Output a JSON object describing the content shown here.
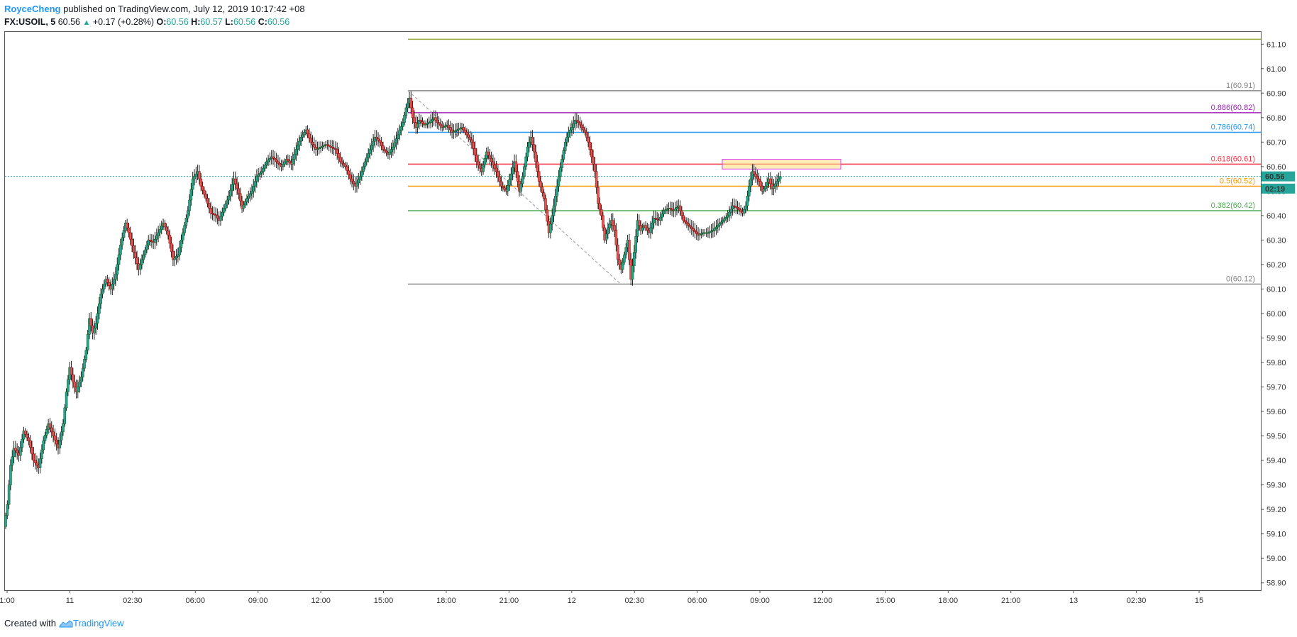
{
  "header": {
    "author": "RoyceCheng",
    "published": " published on TradingView.com, July 12, 2019 10:17:42 +08",
    "symbol": "FX:USOIL, 5",
    "last": "60.56",
    "arrow": "▲",
    "change": "+0.17 (+0.28%)",
    "o_label": "O:",
    "o_value": "60.56",
    "h_label": "H:",
    "h_value": "60.57",
    "l_label": "L:",
    "l_value": "60.56",
    "c_label": "C:",
    "c_value": "60.56"
  },
  "footer": {
    "created": "Created with",
    "brand": "TradingView"
  },
  "colors": {
    "up": "#26a69a",
    "down": "#ef5350",
    "brand": "#2196f3"
  },
  "chart_data": {
    "type": "candlestick",
    "symbol": "FX:USOIL",
    "interval": "5",
    "ylim": [
      58.87,
      61.15
    ],
    "y_ticks": [
      "61.10",
      "61.00",
      "60.90",
      "60.80",
      "60.70",
      "60.60",
      "60.50",
      "60.40",
      "60.30",
      "60.20",
      "60.10",
      "60.00",
      "59.90",
      "59.80",
      "59.70",
      "59.60",
      "59.50",
      "59.40",
      "59.30",
      "59.20",
      "59.10",
      "59.00",
      "58.90"
    ],
    "x_ticks": [
      "1:00",
      "11",
      "02:30",
      "06:00",
      "09:00",
      "12:00",
      "15:00",
      "18:00",
      "21:00",
      "12",
      "02:30",
      "06:00",
      "09:00",
      "12:00",
      "15:00",
      "18:00",
      "21:00",
      "13",
      "02:30",
      "15"
    ],
    "price_series": {
      "name": "",
      "points": [
        [
          0,
          59.13
        ],
        [
          4,
          59.22
        ],
        [
          8,
          59.38
        ],
        [
          12,
          59.45
        ],
        [
          18,
          59.42
        ],
        [
          24,
          59.52
        ],
        [
          30,
          59.48
        ],
        [
          36,
          59.4
        ],
        [
          42,
          59.37
        ],
        [
          48,
          59.48
        ],
        [
          54,
          59.55
        ],
        [
          60,
          59.5
        ],
        [
          66,
          59.45
        ],
        [
          72,
          59.55
        ],
        [
          76,
          59.68
        ],
        [
          80,
          59.78
        ],
        [
          84,
          59.72
        ],
        [
          88,
          59.68
        ],
        [
          94,
          59.74
        ],
        [
          100,
          59.85
        ],
        [
          104,
          59.98
        ],
        [
          108,
          59.92
        ],
        [
          112,
          59.96
        ],
        [
          118,
          60.08
        ],
        [
          124,
          60.14
        ],
        [
          130,
          60.1
        ],
        [
          136,
          60.16
        ],
        [
          142,
          60.28
        ],
        [
          148,
          60.37
        ],
        [
          152,
          60.33
        ],
        [
          158,
          60.25
        ],
        [
          164,
          60.18
        ],
        [
          170,
          60.24
        ],
        [
          176,
          60.3
        ],
        [
          182,
          60.29
        ],
        [
          188,
          60.33
        ],
        [
          194,
          60.37
        ],
        [
          200,
          60.32
        ],
        [
          206,
          60.22
        ],
        [
          212,
          60.24
        ],
        [
          218,
          60.33
        ],
        [
          224,
          60.42
        ],
        [
          230,
          60.55
        ],
        [
          236,
          60.58
        ],
        [
          240,
          60.52
        ],
        [
          246,
          60.47
        ],
        [
          252,
          60.41
        ],
        [
          258,
          60.4
        ],
        [
          262,
          60.38
        ],
        [
          268,
          60.43
        ],
        [
          274,
          60.48
        ],
        [
          280,
          60.55
        ],
        [
          286,
          60.49
        ],
        [
          290,
          60.43
        ],
        [
          296,
          60.47
        ],
        [
          302,
          60.5
        ],
        [
          308,
          60.56
        ],
        [
          314,
          60.58
        ],
        [
          320,
          60.62
        ],
        [
          326,
          60.64
        ],
        [
          332,
          60.62
        ],
        [
          338,
          60.6
        ],
        [
          344,
          60.63
        ],
        [
          350,
          60.61
        ],
        [
          356,
          60.67
        ],
        [
          362,
          60.72
        ],
        [
          368,
          60.75
        ],
        [
          374,
          60.7
        ],
        [
          380,
          60.67
        ],
        [
          386,
          60.68
        ],
        [
          392,
          60.69
        ],
        [
          398,
          60.68
        ],
        [
          404,
          60.67
        ],
        [
          410,
          60.62
        ],
        [
          416,
          60.6
        ],
        [
          422,
          60.55
        ],
        [
          428,
          60.52
        ],
        [
          434,
          60.56
        ],
        [
          440,
          60.62
        ],
        [
          446,
          60.67
        ],
        [
          452,
          60.72
        ],
        [
          458,
          60.7
        ],
        [
          462,
          60.67
        ],
        [
          468,
          60.65
        ],
        [
          474,
          60.68
        ],
        [
          480,
          60.73
        ],
        [
          486,
          60.78
        ],
        [
          490,
          60.84
        ],
        [
          494,
          60.88
        ],
        [
          498,
          60.8
        ],
        [
          502,
          60.76
        ],
        [
          506,
          60.79
        ],
        [
          512,
          60.77
        ],
        [
          518,
          60.78
        ],
        [
          524,
          60.8
        ],
        [
          528,
          60.78
        ],
        [
          534,
          60.76
        ],
        [
          540,
          60.77
        ],
        [
          546,
          60.74
        ],
        [
          552,
          60.75
        ],
        [
          558,
          60.76
        ],
        [
          564,
          60.73
        ],
        [
          570,
          60.7
        ],
        [
          576,
          60.62
        ],
        [
          582,
          60.58
        ],
        [
          588,
          60.66
        ],
        [
          594,
          60.62
        ],
        [
          600,
          60.58
        ],
        [
          606,
          60.52
        ],
        [
          612,
          60.5
        ],
        [
          618,
          60.57
        ],
        [
          622,
          60.62
        ],
        [
          628,
          60.5
        ],
        [
          632,
          60.56
        ],
        [
          638,
          60.68
        ],
        [
          642,
          60.72
        ],
        [
          646,
          60.66
        ],
        [
          652,
          60.54
        ],
        [
          658,
          60.47
        ],
        [
          664,
          60.33
        ],
        [
          668,
          60.4
        ],
        [
          672,
          60.48
        ],
        [
          676,
          60.56
        ],
        [
          680,
          60.63
        ],
        [
          684,
          60.7
        ],
        [
          688,
          60.74
        ],
        [
          692,
          60.76
        ],
        [
          696,
          60.79
        ],
        [
          700,
          60.78
        ],
        [
          704,
          60.76
        ],
        [
          708,
          60.74
        ],
        [
          712,
          60.7
        ],
        [
          716,
          60.64
        ],
        [
          720,
          60.58
        ],
        [
          724,
          60.45
        ],
        [
          728,
          60.4
        ],
        [
          732,
          60.3
        ],
        [
          736,
          60.35
        ],
        [
          740,
          60.38
        ],
        [
          744,
          60.34
        ],
        [
          748,
          60.22
        ],
        [
          752,
          60.18
        ],
        [
          756,
          60.24
        ],
        [
          760,
          60.3
        ],
        [
          764,
          60.14
        ],
        [
          768,
          60.25
        ],
        [
          772,
          60.38
        ],
        [
          776,
          60.34
        ],
        [
          780,
          60.36
        ],
        [
          786,
          60.33
        ],
        [
          792,
          60.39
        ],
        [
          798,
          60.38
        ],
        [
          804,
          60.42
        ],
        [
          810,
          60.43
        ],
        [
          816,
          60.42
        ],
        [
          822,
          60.44
        ],
        [
          828,
          60.38
        ],
        [
          834,
          60.36
        ],
        [
          840,
          60.34
        ],
        [
          846,
          60.32
        ],
        [
          852,
          60.33
        ],
        [
          858,
          60.33
        ],
        [
          864,
          60.34
        ],
        [
          870,
          60.36
        ],
        [
          876,
          60.38
        ],
        [
          882,
          60.4
        ],
        [
          888,
          60.44
        ],
        [
          894,
          60.43
        ],
        [
          900,
          60.41
        ],
        [
          904,
          60.44
        ],
        [
          908,
          60.52
        ],
        [
          912,
          60.58
        ],
        [
          916,
          60.56
        ],
        [
          920,
          60.54
        ],
        [
          924,
          60.5
        ],
        [
          928,
          60.52
        ],
        [
          932,
          60.55
        ],
        [
          936,
          60.51
        ],
        [
          940,
          60.53
        ],
        [
          944,
          60.55
        ],
        [
          946,
          60.56
        ]
      ]
    },
    "fibonacci": [
      {
        "level": "1",
        "price": 60.91,
        "label": "1(60.91)",
        "color": "#868686"
      },
      {
        "level": "0.886",
        "price": 60.82,
        "label": "0.886(60.82)",
        "color": "#9c27b0"
      },
      {
        "level": "0.786",
        "price": 60.74,
        "label": "0.786(60.74)",
        "color": "#2196f3"
      },
      {
        "level": "0.618",
        "price": 60.61,
        "label": "0.618(60.61)",
        "color": "#f23645"
      },
      {
        "level": "0.5",
        "price": 60.52,
        "label": "0.5(60.52)",
        "color": "#ff9800"
      },
      {
        "level": "0.382",
        "price": 60.42,
        "label": "0.382(60.42)",
        "color": "#4caf50"
      },
      {
        "level": "0",
        "price": 60.12,
        "label": "0(60.12)",
        "color": "#868686"
      }
    ],
    "top_line": {
      "price": 61.12,
      "color": "#99a839"
    },
    "current_price": {
      "value": "60.56",
      "price": 60.56,
      "color": "#26a69a"
    },
    "countdown": {
      "value": "02:19",
      "price": 60.51,
      "color": "#26a69a"
    },
    "highlight_zone": {
      "price_top": 60.63,
      "price_bottom": 60.59,
      "fill": "#ffdf80",
      "stroke": "#e040fb"
    },
    "trend_line": {
      "from_price": 60.91,
      "to_price": 60.12
    },
    "grid": false
  }
}
